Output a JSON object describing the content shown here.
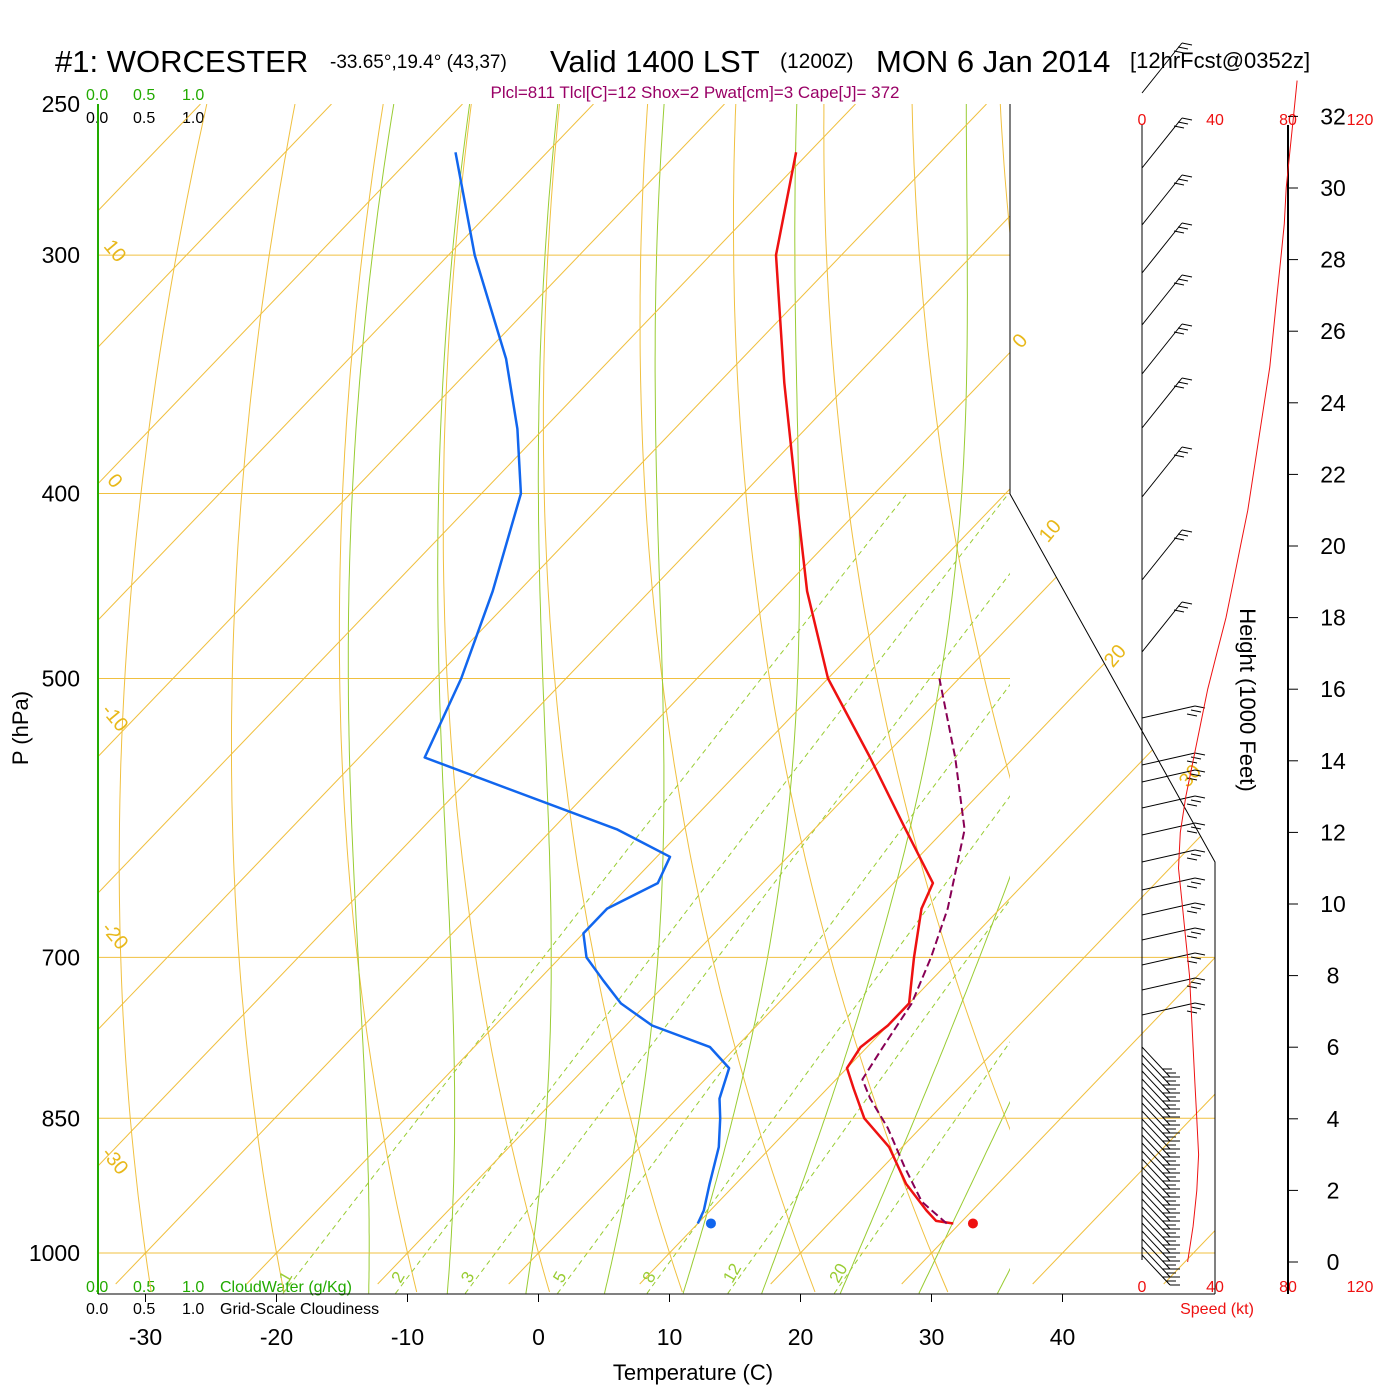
{
  "header": {
    "station": "#1: WORCESTER",
    "coords": "-33.65°,19.4° (43,37)",
    "valid": "Valid 1400 LST",
    "zulu": "(1200Z)",
    "date": "MON 6 Jan 2014",
    "forecast": "[12hrFcst@0352z]"
  },
  "params": "Plcl=811 Tlcl[C]=12 Shox=2 Pwat[cm]=3 Cape[J]= 372",
  "top_scale": {
    "green": [
      "0.0",
      "0.5",
      "1.0"
    ],
    "black": [
      "0.0",
      "0.5",
      "1.0"
    ]
  },
  "bottom_scale": {
    "green": [
      "0.0",
      "0.5",
      "1.0"
    ],
    "green_label": "CloudWater (g/Kg)",
    "black": [
      "0.0",
      "0.5",
      "1.0"
    ],
    "black_label": "Grid-Scale Cloudiness"
  },
  "speed_scale": {
    "top": [
      "0",
      "40",
      "80",
      "120"
    ],
    "bottom": [
      "0",
      "40",
      "80",
      "120"
    ],
    "label": "Speed (kt)"
  },
  "colors": {
    "temperature": "#ee1111",
    "dewpoint": "#1166ee",
    "parcel": "#880055",
    "isobar": "#f0c040",
    "isotherm": "#f0c040",
    "dry_adiabat": "#f0c040",
    "moist_adiabat": "#99cc33",
    "mixing_ratio": "#99cc33",
    "params_text": "#990066",
    "scale_green": "#22aa00",
    "speed_red": "#ee1111"
  },
  "chart_data": {
    "type": "line",
    "diagram": "skew-T log-P",
    "xlabel": "Temperature (C)",
    "ylabel": "P (hPa)",
    "height_label": "Height (1000 Feet)",
    "x_ticks": [
      -30,
      -20,
      -10,
      0,
      10,
      20,
      30,
      40
    ],
    "p_ticks": [
      250,
      300,
      400,
      500,
      700,
      850,
      1000
    ],
    "height_ticks": [
      0,
      2,
      4,
      6,
      8,
      10,
      12,
      14,
      16,
      18,
      20,
      22,
      24,
      26,
      28,
      30,
      32
    ],
    "isotherm_labels": [
      "10",
      "0",
      "-10",
      "-20",
      "-30",
      "0",
      "10",
      "20",
      "30"
    ],
    "mixing_ratio_labels": [
      "1",
      "2",
      "3",
      "5",
      "8",
      "12",
      "20"
    ],
    "series": [
      {
        "key": "temperature",
        "p": [
          965,
          962,
          950,
          920,
          880,
          850,
          820,
          800,
          780,
          760,
          740,
          700,
          660,
          640,
          600,
          550,
          500,
          450,
          400,
          350,
          300,
          265
        ],
        "temp": [
          29.5,
          28,
          26.5,
          23,
          19,
          15,
          12,
          10,
          9.5,
          10,
          10,
          7,
          4,
          3,
          -3,
          -11,
          -20,
          -28,
          -36,
          -45,
          -55,
          -61
        ]
      },
      {
        "key": "dewpoint",
        "p": [
          965,
          950,
          920,
          880,
          850,
          830,
          800,
          780,
          760,
          740,
          720,
          700,
          680,
          660,
          640,
          620,
          600,
          550,
          500,
          450,
          400,
          370,
          340,
          300,
          265
        ],
        "temp": [
          10,
          9.5,
          8,
          6,
          4,
          2.5,
          1,
          -2,
          -8,
          -12,
          -15,
          -18,
          -20,
          -20,
          -18,
          -19,
          -25,
          -45,
          -48,
          -52,
          -57,
          -62,
          -68,
          -78,
          -87
        ]
      },
      {
        "key": "parcel",
        "p": [
          965,
          940,
          900,
          860,
          830,
          811,
          780,
          740,
          700,
          660,
          600,
          550,
          500
        ],
        "temp": [
          29,
          25.5,
          21.5,
          17.5,
          14,
          12,
          11.2,
          10.2,
          8.3,
          6,
          1.5,
          -4.5,
          -11.5
        ]
      }
    ],
    "surface_points": [
      {
        "key": "temperature",
        "p": 965,
        "temp": 31
      },
      {
        "key": "dewpoint",
        "p": 965,
        "temp": 11
      }
    ],
    "wind_speed_profile": {
      "height_kft": [
        0,
        1,
        2,
        3,
        4,
        5,
        6,
        7,
        8,
        9,
        10,
        11,
        12,
        13,
        14,
        15,
        16,
        17,
        18,
        19,
        20,
        21,
        22,
        23,
        24,
        25,
        26,
        27,
        28,
        29,
        30,
        31,
        32,
        33
      ],
      "speed_kt": [
        25,
        28,
        30,
        31,
        30,
        29,
        28,
        27,
        26,
        24,
        22,
        20,
        21,
        24,
        28,
        32,
        36,
        41,
        46,
        50,
        54,
        58,
        61,
        64,
        67,
        70,
        72,
        74,
        76,
        78,
        79,
        81,
        83,
        85
      ]
    }
  }
}
